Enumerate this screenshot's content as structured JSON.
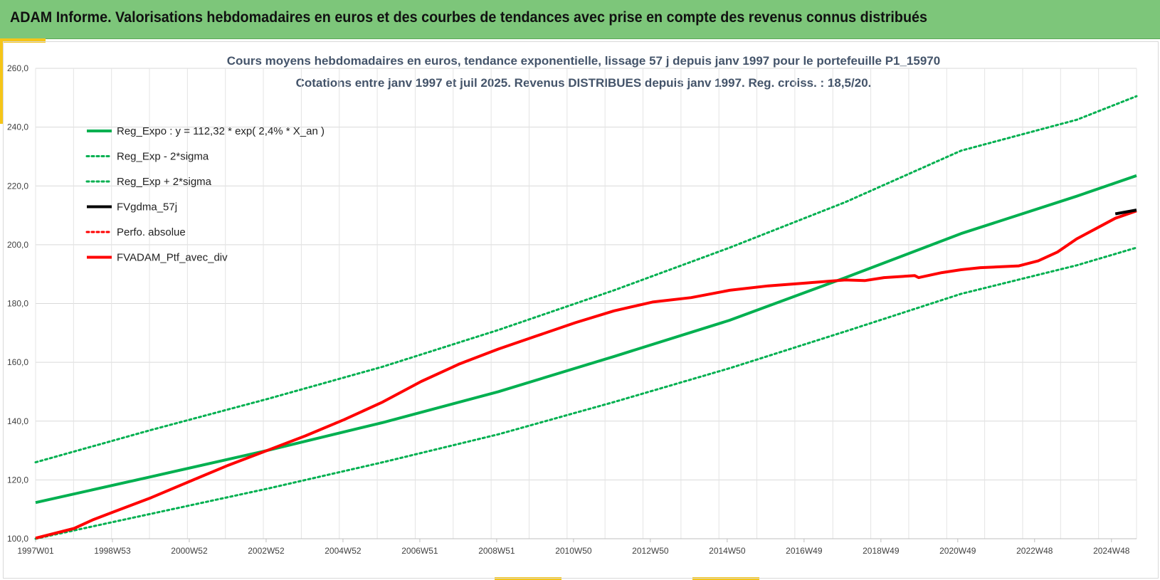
{
  "header": {
    "title": "ADAM Informe. Valorisations hebdomadaires en euros et des courbes de tendances avec prise en compte des revenus connus distribués"
  },
  "colors": {
    "header_bg": "#7dc67a",
    "accent": "#f5c518",
    "reg_green": "#00b050",
    "ptf_red": "#ff0000",
    "fvgdma_black": "#000000",
    "title_text": "#44546a"
  },
  "chart_data": {
    "type": "line",
    "title": [
      "Cours moyens hebdomadaires  en euros, tendance exponentielle, lissage 57 j depuis janv 1997 pour le portefeuille P1_15970",
      "Cotations  entre janv 1997 et juil 2025. Revenus DISTRIBUES depuis janv 1997. Reg. croiss. : 18,5/20."
    ],
    "xlabel": "",
    "ylabel": "",
    "x_categories": [
      "1997W01",
      "1998W53",
      "2000W52",
      "2002W52",
      "2004W52",
      "2006W51",
      "2008W51",
      "2010W50",
      "2012W50",
      "2014W50",
      "2016W49",
      "2018W49",
      "2020W49",
      "2022W48",
      "2024W48"
    ],
    "x_range_years": [
      1997.0,
      2025.55
    ],
    "y_ticks": [
      "100,0",
      "120,0",
      "140,0",
      "160,0",
      "180,0",
      "200,0",
      "220,0",
      "240,0",
      "260,0"
    ],
    "ylim": [
      100,
      260
    ],
    "grid": true,
    "legend_position": "top-left",
    "series": [
      {
        "name": "Reg_Expo : y = 112,32 * exp( 2,4% *  X_an )",
        "style": "solid",
        "color": "#00b050",
        "x": [
          1997.0,
          2000.0,
          2003.0,
          2006.0,
          2009.0,
          2012.0,
          2015.0,
          2018.0,
          2021.0,
          2024.0,
          2025.55
        ],
        "values": [
          112.3,
          121.1,
          130.0,
          139.5,
          150.0,
          162.0,
          174.3,
          188.8,
          203.8,
          216.5,
          223.5
        ]
      },
      {
        "name": "Reg_Exp - 2*sigma",
        "style": "dotted",
        "color": "#00b050",
        "x": [
          1997.0,
          2000.0,
          2003.0,
          2006.0,
          2009.0,
          2012.0,
          2015.0,
          2018.0,
          2021.0,
          2024.0,
          2025.55
        ],
        "values": [
          100.0,
          108.5,
          117.0,
          126.0,
          135.5,
          146.5,
          158.0,
          170.5,
          183.3,
          193.0,
          199.0
        ]
      },
      {
        "name": "Reg_Exp + 2*sigma",
        "style": "dotted",
        "color": "#00b050",
        "x": [
          1997.0,
          2000.0,
          2003.0,
          2006.0,
          2009.0,
          2012.0,
          2015.0,
          2018.0,
          2021.0,
          2024.0,
          2025.55
        ],
        "values": [
          126.0,
          137.0,
          147.5,
          158.5,
          171.0,
          184.5,
          199.0,
          214.5,
          232.0,
          242.5,
          250.5
        ]
      },
      {
        "name": "FVgdma_57j",
        "style": "solid",
        "color": "#000000",
        "x": [
          2025.0,
          2025.55
        ],
        "values": [
          210.5,
          211.8
        ]
      },
      {
        "name": "Perfo. absolue",
        "style": "dotted",
        "color": "#ff0000",
        "x": [],
        "values": []
      },
      {
        "name": "FVADAM_Ptf_avec_div",
        "style": "solid",
        "color": "#ff0000",
        "x": [
          1997.0,
          1998.0,
          1998.5,
          1999.0,
          2000.0,
          2001.0,
          2002.0,
          2003.0,
          2004.0,
          2005.0,
          2006.0,
          2007.0,
          2008.0,
          2009.0,
          2010.0,
          2011.0,
          2012.0,
          2013.0,
          2014.0,
          2015.0,
          2016.0,
          2017.0,
          2018.0,
          2018.5,
          2019.0,
          2019.8,
          2019.9,
          2020.5,
          2021.0,
          2021.5,
          2022.0,
          2022.5,
          2023.0,
          2023.5,
          2024.0,
          2024.5,
          2025.0,
          2025.55
        ],
        "values": [
          100.2,
          103.5,
          106.5,
          109.0,
          114.0,
          119.5,
          125.0,
          130.0,
          135.0,
          140.5,
          146.5,
          153.5,
          159.5,
          164.5,
          169.0,
          173.5,
          177.5,
          180.5,
          182.0,
          184.5,
          186.0,
          187.0,
          188.0,
          187.8,
          188.8,
          189.5,
          188.8,
          190.5,
          191.5,
          192.2,
          192.5,
          192.8,
          194.5,
          197.5,
          202.0,
          205.5,
          209.0,
          211.5
        ]
      }
    ]
  }
}
